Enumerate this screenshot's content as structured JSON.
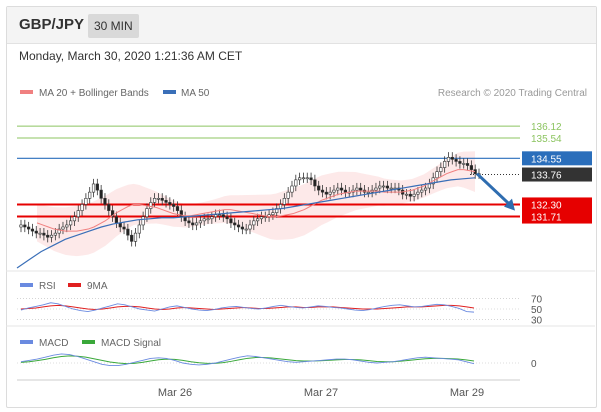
{
  "header": {
    "pair": "GBP/JPY",
    "timeframe": "30 MIN",
    "datetime": "Monday, March 30, 2020 1:21:36 AM CET"
  },
  "colors": {
    "ma20": "#f08080",
    "ma50": "#3a6fb8",
    "band_fill": "#fde4e4",
    "resistance": "#2a6ebb",
    "support": "#e60000",
    "target_green": "#8cc460",
    "current": "#333333",
    "arrow": "#2f6db0",
    "rsi": "#6a8ae0",
    "rsi9ma": "#e02020",
    "macd": "#6a8ae0",
    "macd_signal": "#3aa83a"
  },
  "chart_data": [
    {
      "type": "candlestick",
      "legend": [
        {
          "name": "MA 20 + Bollinger Bands",
          "icon": "line-swatch-red"
        },
        {
          "name": "MA 50",
          "icon": "line-swatch-blue"
        }
      ],
      "credit": "Research © 2020 Trading Central",
      "x_ticks": [
        "Mar 26",
        "Mar 27",
        "Mar 29"
      ],
      "y_range": [
        129.2,
        137.2
      ],
      "levels": [
        {
          "label": "136.12",
          "value": 136.12,
          "kind": "target"
        },
        {
          "label": "135.54",
          "value": 135.54,
          "kind": "target"
        },
        {
          "label": "134.55",
          "value": 134.55,
          "kind": "resistance"
        },
        {
          "label": "133.76",
          "value": 133.76,
          "kind": "current"
        },
        {
          "label": "132.30",
          "value": 132.3,
          "kind": "support"
        },
        {
          "label": "131.71",
          "value": 131.71,
          "kind": "support"
        }
      ],
      "arrow": {
        "from": 133.8,
        "to": 131.9,
        "direction": "down"
      },
      "close_series": [
        131.3,
        131.2,
        131.1,
        131.0,
        130.9,
        130.9,
        130.8,
        130.7,
        130.8,
        130.9,
        131.1,
        131.2,
        131.3,
        131.5,
        131.7,
        132.0,
        132.3,
        132.6,
        132.9,
        133.3,
        133.0,
        132.6,
        132.3,
        132.0,
        131.7,
        131.4,
        131.2,
        131.1,
        130.8,
        130.5,
        130.9,
        131.3,
        131.7,
        132.1,
        132.4,
        132.6,
        132.6,
        132.5,
        132.4,
        132.3,
        132.2,
        132.0,
        131.7,
        131.5,
        131.4,
        131.3,
        131.4,
        131.5,
        131.6,
        131.6,
        131.7,
        131.8,
        131.8,
        131.7,
        131.6,
        131.4,
        131.3,
        131.2,
        131.1,
        131.1,
        131.3,
        131.5,
        131.6,
        131.7,
        131.7,
        131.8,
        131.9,
        132.1,
        132.3,
        132.6,
        132.9,
        133.2,
        133.5,
        133.6,
        133.6,
        133.6,
        133.5,
        133.2,
        133.0,
        132.9,
        132.8,
        132.9,
        133.0,
        133.1,
        133.0,
        132.9,
        132.9,
        133.0,
        133.1,
        133.0,
        132.9,
        132.9,
        133.0,
        133.1,
        133.2,
        133.2,
        133.1,
        133.1,
        133.1,
        133.0,
        132.8,
        132.8,
        132.7,
        132.8,
        132.9,
        133.0,
        133.1,
        133.3,
        133.6,
        133.9,
        134.1,
        134.4,
        134.6,
        134.5,
        134.4,
        134.3,
        134.3,
        134.2,
        134.0,
        133.8,
        133.8
      ],
      "ma20_series": [
        131.4,
        131.3,
        131.2,
        131.1,
        131.05,
        131.0,
        131.0,
        131.0,
        131.05,
        131.1,
        131.2,
        131.35,
        131.5,
        131.7,
        131.9,
        132.05,
        132.2,
        132.3,
        132.3,
        132.25,
        132.2,
        132.15,
        132.05,
        131.95,
        131.85,
        131.8,
        131.75,
        131.75,
        131.8,
        131.85,
        131.9,
        131.95,
        132.0,
        132.05,
        132.05,
        132.0,
        131.95,
        131.9,
        131.85,
        131.8,
        131.75,
        131.7,
        131.7,
        131.75,
        131.8,
        131.85,
        131.95,
        132.05,
        132.2,
        132.35,
        132.5,
        132.6,
        132.7,
        132.8,
        132.85,
        132.9,
        132.95,
        132.95,
        132.95,
        132.95,
        132.95,
        132.9,
        132.9,
        132.9,
        132.9,
        132.95,
        133.0,
        133.1,
        133.2,
        133.35,
        133.5,
        133.65,
        133.8,
        133.9,
        134.0,
        134.0,
        133.95,
        133.9
      ],
      "ma50_series": [
        129.2,
        129.6,
        130.0,
        130.3,
        130.6,
        130.8,
        131.0,
        131.2,
        131.35,
        131.45,
        131.55,
        131.6,
        131.65,
        131.65,
        131.7,
        131.75,
        131.8,
        131.85,
        131.9,
        131.95,
        132.0,
        132.05,
        132.1,
        132.2,
        132.3,
        132.4,
        132.5,
        132.6,
        132.7,
        132.8,
        132.9,
        133.0,
        133.1,
        133.2,
        133.3,
        133.4,
        133.5,
        133.55,
        133.6
      ]
    },
    {
      "type": "line",
      "legend": [
        {
          "name": "RSI"
        },
        {
          "name": "9MA"
        }
      ],
      "y_ticks": [
        "70",
        "50",
        "30"
      ],
      "y_range": [
        25,
        75
      ],
      "rsi_series": [
        48,
        52,
        55,
        58,
        62,
        60,
        55,
        50,
        47,
        45,
        48,
        52,
        56,
        60,
        58,
        54,
        50,
        48,
        46,
        50,
        54,
        56,
        53,
        50,
        48,
        47,
        49,
        52,
        54,
        55,
        53,
        51,
        50,
        52,
        55,
        57,
        55,
        53,
        52,
        54,
        56,
        55,
        53,
        52,
        50,
        48,
        47,
        49,
        52,
        55,
        57,
        58,
        56,
        54,
        55,
        57,
        59,
        58,
        55,
        51,
        45,
        44
      ],
      "ma9_series": [
        50,
        51,
        52,
        54,
        56,
        57,
        56,
        54,
        52,
        50,
        49,
        50,
        52,
        54,
        55,
        55,
        54,
        52,
        50,
        49,
        50,
        52,
        53,
        52,
        51,
        50,
        49,
        50,
        51,
        52,
        53,
        52,
        51,
        51,
        52,
        53,
        54,
        54,
        53,
        53,
        54,
        54,
        54,
        53,
        52,
        51,
        50,
        50,
        50,
        51,
        52,
        53,
        54,
        54,
        54,
        55,
        56,
        57,
        57,
        56,
        54,
        52
      ]
    },
    {
      "type": "line",
      "legend": [
        {
          "name": "MACD"
        },
        {
          "name": "MACD Signal"
        }
      ],
      "y_ticks": [
        "0"
      ],
      "y_range": [
        -1,
        1
      ],
      "macd_series": [
        0.1,
        0.2,
        0.3,
        0.45,
        0.6,
        0.7,
        0.65,
        0.5,
        0.3,
        0.1,
        -0.1,
        -0.2,
        -0.2,
        -0.1,
        0.05,
        0.2,
        0.35,
        0.4,
        0.35,
        0.2,
        0.0,
        -0.1,
        -0.15,
        -0.1,
        0.0,
        0.15,
        0.3,
        0.45,
        0.55,
        0.5,
        0.4,
        0.3,
        0.2,
        0.1,
        0.05,
        0.1,
        0.15,
        0.2,
        0.25,
        0.3,
        0.3,
        0.25,
        0.15,
        0.05,
        0.0,
        0.05,
        0.1,
        0.2,
        0.3,
        0.4,
        0.45,
        0.4,
        0.35,
        0.3,
        0.25,
        0.1,
        -0.05
      ],
      "signal_series": [
        0.05,
        0.1,
        0.18,
        0.28,
        0.4,
        0.5,
        0.55,
        0.52,
        0.45,
        0.33,
        0.2,
        0.08,
        0.0,
        -0.05,
        -0.03,
        0.05,
        0.15,
        0.25,
        0.3,
        0.28,
        0.2,
        0.1,
        0.02,
        -0.03,
        -0.03,
        0.03,
        0.13,
        0.25,
        0.36,
        0.42,
        0.42,
        0.38,
        0.32,
        0.25,
        0.18,
        0.15,
        0.15,
        0.17,
        0.2,
        0.24,
        0.27,
        0.27,
        0.24,
        0.18,
        0.12,
        0.1,
        0.1,
        0.14,
        0.2,
        0.27,
        0.33,
        0.36,
        0.36,
        0.34,
        0.31,
        0.24,
        0.15
      ]
    }
  ]
}
